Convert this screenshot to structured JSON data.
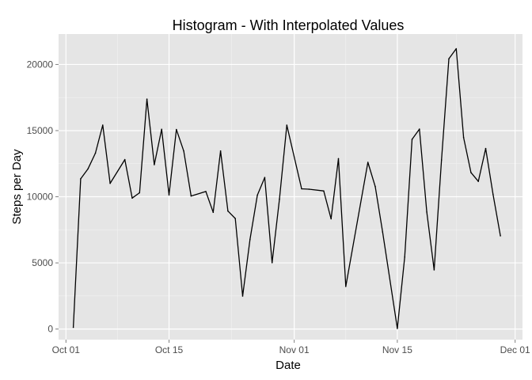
{
  "chart_data": {
    "type": "line",
    "title": "Histogram - With Interpolated Values",
    "xlabel": "Date",
    "ylabel": "Steps per Day",
    "x_axis_type": "date",
    "xlim": [
      "2012-09-30",
      "2012-12-02"
    ],
    "ylim": [
      -800,
      22300
    ],
    "x_ticks": [
      {
        "date": "2012-10-01",
        "label": "Oct 01"
      },
      {
        "date": "2012-10-15",
        "label": "Oct 15"
      },
      {
        "date": "2012-11-01",
        "label": "Nov 01"
      },
      {
        "date": "2012-11-15",
        "label": "Nov 15"
      },
      {
        "date": "2012-12-01",
        "label": "Dec 01"
      }
    ],
    "y_ticks": [
      {
        "value": 0,
        "label": "0"
      },
      {
        "value": 5000,
        "label": "5000"
      },
      {
        "value": 10000,
        "label": "10000"
      },
      {
        "value": 15000,
        "label": "15000"
      },
      {
        "value": 20000,
        "label": "20000"
      }
    ],
    "grid": true,
    "colors": {
      "panel": "#e5e5e5",
      "grid_major": "#ffffff",
      "grid_minor": "#f2f2f2",
      "line": "#000000"
    },
    "series": [
      {
        "x": [
          "2012-10-02",
          "2012-10-03",
          "2012-10-04",
          "2012-10-05",
          "2012-10-06",
          "2012-10-07",
          "2012-10-09",
          "2012-10-10",
          "2012-10-11",
          "2012-10-12",
          "2012-10-13",
          "2012-10-14",
          "2012-10-15",
          "2012-10-16",
          "2012-10-17",
          "2012-10-18",
          "2012-10-20",
          "2012-10-21",
          "2012-10-22",
          "2012-10-23",
          "2012-10-24",
          "2012-10-25",
          "2012-10-26",
          "2012-10-27",
          "2012-10-28",
          "2012-10-29",
          "2012-10-30",
          "2012-10-31",
          "2012-11-02",
          "2012-11-03",
          "2012-11-05",
          "2012-11-06",
          "2012-11-07",
          "2012-11-08",
          "2012-11-11",
          "2012-11-12",
          "2012-11-13",
          "2012-11-15",
          "2012-11-16",
          "2012-11-17",
          "2012-11-18",
          "2012-11-19",
          "2012-11-20",
          "2012-11-21",
          "2012-11-22",
          "2012-11-23",
          "2012-11-24",
          "2012-11-25",
          "2012-11-26",
          "2012-11-27",
          "2012-11-28",
          "2012-11-29"
        ],
        "values": [
          126,
          11352,
          12116,
          13294,
          15420,
          11015,
          12811,
          9900,
          10304,
          17382,
          12426,
          15098,
          10139,
          15084,
          13452,
          10056,
          10395,
          8821,
          13460,
          8918,
          8355,
          2492,
          6778,
          10119,
          11458,
          5018,
          9819,
          15414,
          10600,
          10571,
          10439,
          8334,
          12883,
          3219,
          12608,
          10765,
          7336,
          41,
          5441,
          14339,
          15110,
          8841,
          4472,
          12787,
          20427,
          21194,
          14478,
          11834,
          11162,
          13646,
          10183,
          7047
        ]
      }
    ]
  }
}
